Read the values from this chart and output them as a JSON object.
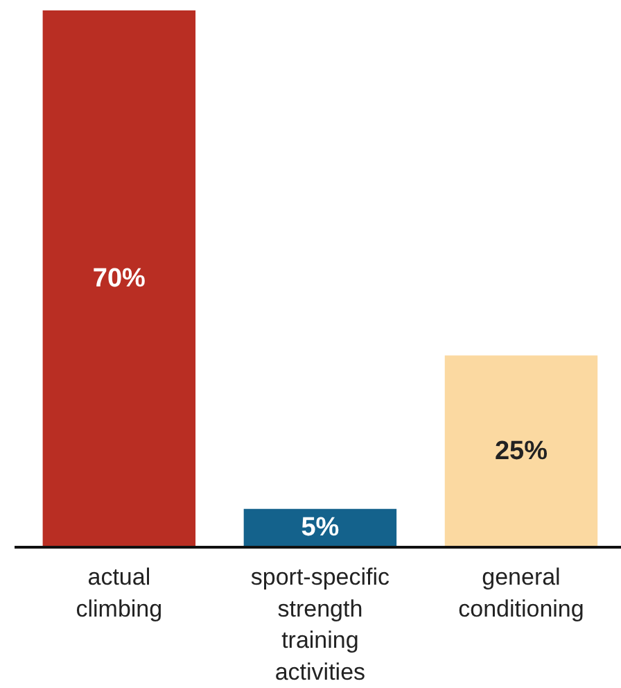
{
  "chart_data": {
    "type": "bar",
    "categories": [
      "actual climbing",
      "sport-specific strength training activities",
      "general conditioning"
    ],
    "values": [
      70,
      5,
      25
    ],
    "colors": [
      "#b92e23",
      "#14628c",
      "#fbd9a1"
    ],
    "value_labels": [
      "70%",
      "5%",
      "25%"
    ],
    "ylim": [
      0,
      70
    ],
    "tick_labels": "x"
  }
}
